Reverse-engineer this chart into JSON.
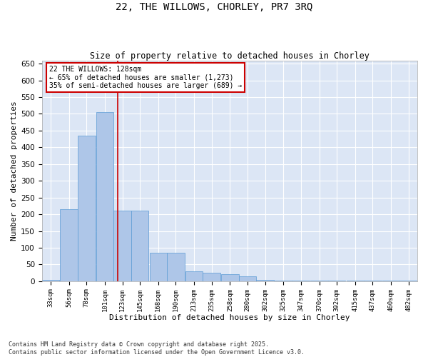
{
  "title": "22, THE WILLOWS, CHORLEY, PR7 3RQ",
  "subtitle": "Size of property relative to detached houses in Chorley",
  "xlabel": "Distribution of detached houses by size in Chorley",
  "ylabel": "Number of detached properties",
  "footer": "Contains HM Land Registry data © Crown copyright and database right 2025.\nContains public sector information licensed under the Open Government Licence v3.0.",
  "bar_color": "#aec6e8",
  "bar_edge_color": "#5b9bd5",
  "background_color": "#dce6f5",
  "grid_color": "#ffffff",
  "bins": [
    33,
    56,
    78,
    101,
    123,
    145,
    168,
    190,
    213,
    235,
    258,
    280,
    302,
    325,
    347,
    370,
    392,
    415,
    437,
    460,
    482
  ],
  "values": [
    5,
    215,
    435,
    505,
    210,
    210,
    85,
    85,
    30,
    25,
    20,
    15,
    5,
    2,
    2,
    2,
    2,
    2,
    2,
    2,
    2
  ],
  "bin_labels": [
    "33sqm",
    "56sqm",
    "78sqm",
    "101sqm",
    "123sqm",
    "145sqm",
    "168sqm",
    "190sqm",
    "213sqm",
    "235sqm",
    "258sqm",
    "280sqm",
    "302sqm",
    "325sqm",
    "347sqm",
    "370sqm",
    "392sqm",
    "415sqm",
    "437sqm",
    "460sqm",
    "482sqm"
  ],
  "ylim": [
    0,
    660
  ],
  "yticks": [
    0,
    50,
    100,
    150,
    200,
    250,
    300,
    350,
    400,
    450,
    500,
    550,
    600,
    650
  ],
  "annotation_title": "22 THE WILLOWS: 128sqm",
  "annotation_line1": "← 65% of detached houses are smaller (1,273)",
  "annotation_line2": "35% of semi-detached houses are larger (689) →",
  "annotation_color": "#cc0000",
  "vline_color": "#cc0000",
  "vline_x": 128
}
